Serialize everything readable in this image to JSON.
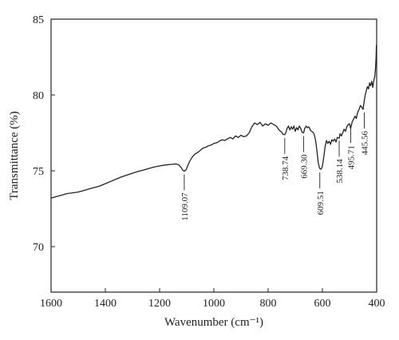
{
  "chart_data": {
    "type": "line",
    "title": "",
    "xlabel": "Wavenumber (cm⁻¹)",
    "ylabel": "Transmittance (%)",
    "xlim": [
      1600,
      400
    ],
    "ylim": [
      67,
      85
    ],
    "x_ticks": [
      "1600",
      "1400",
      "1200",
      "1000",
      "800",
      "600",
      "400"
    ],
    "y_ticks": [
      "85",
      "80",
      "75",
      "70"
    ],
    "grid": false,
    "line_color": "#222222",
    "series": [
      {
        "x": [
          1600,
          1580,
          1560,
          1540,
          1520,
          1500,
          1480,
          1460,
          1440,
          1420,
          1400,
          1380,
          1360,
          1340,
          1320,
          1300,
          1280,
          1260,
          1240,
          1220,
          1200,
          1180,
          1160,
          1140,
          1130,
          1120,
          1115,
          1109,
          1103,
          1097,
          1090,
          1080,
          1070,
          1060,
          1050,
          1040,
          1030,
          1020,
          1010,
          1000,
          990,
          980,
          970,
          960,
          950,
          940,
          930,
          920,
          910,
          900,
          890,
          880,
          870,
          860,
          850,
          840,
          830,
          820,
          810,
          800,
          790,
          780,
          770,
          760,
          750,
          745,
          739,
          735,
          730,
          725,
          720,
          715,
          710,
          705,
          700,
          695,
          690,
          685,
          680,
          675,
          669,
          665,
          660,
          655,
          650,
          645,
          640,
          635,
          630,
          625,
          620,
          615,
          610,
          605,
          600,
          595,
          590,
          585,
          580,
          575,
          570,
          565,
          560,
          555,
          550,
          545,
          538,
          535,
          530,
          525,
          520,
          515,
          510,
          505,
          500,
          496,
          490,
          485,
          480,
          475,
          470,
          465,
          460,
          455,
          450,
          446,
          442,
          438,
          434,
          430,
          426,
          422,
          418,
          414,
          410,
          407,
          404,
          402,
          401
        ],
        "y": [
          73.2,
          73.3,
          73.4,
          73.5,
          73.55,
          73.6,
          73.7,
          73.8,
          73.9,
          74.0,
          74.15,
          74.3,
          74.45,
          74.6,
          74.72,
          74.84,
          74.95,
          75.05,
          75.15,
          75.25,
          75.32,
          75.38,
          75.42,
          75.45,
          75.4,
          75.2,
          75.05,
          74.98,
          75.05,
          75.3,
          75.6,
          75.9,
          76.1,
          76.2,
          76.35,
          76.5,
          76.55,
          76.65,
          76.7,
          76.8,
          76.85,
          76.95,
          77.05,
          77.0,
          77.1,
          77.2,
          77.1,
          77.3,
          77.2,
          77.35,
          77.25,
          77.3,
          77.5,
          77.9,
          78.15,
          78.05,
          78.2,
          77.95,
          78.1,
          78.0,
          78.15,
          78.05,
          77.95,
          77.7,
          77.55,
          77.4,
          77.38,
          77.5,
          77.8,
          77.95,
          77.7,
          77.9,
          77.75,
          77.95,
          77.6,
          77.85,
          77.7,
          77.95,
          77.8,
          77.55,
          77.5,
          77.8,
          77.95,
          77.85,
          77.9,
          77.7,
          77.6,
          77.55,
          77.4,
          77.0,
          76.3,
          75.5,
          75.15,
          75.1,
          75.3,
          75.9,
          76.6,
          77.0,
          76.8,
          76.95,
          76.75,
          77.05,
          76.95,
          77.1,
          76.9,
          77.2,
          77.15,
          77.45,
          77.3,
          77.5,
          77.75,
          77.6,
          77.9,
          78.05,
          78.1,
          77.8,
          78.25,
          78.4,
          78.6,
          78.45,
          78.85,
          79.05,
          79.3,
          79.2,
          79.05,
          79.6,
          80.0,
          80.3,
          80.55,
          80.4,
          80.8,
          80.6,
          80.9,
          80.5,
          81.0,
          81.2,
          81.8,
          82.5,
          83.3
        ]
      }
    ],
    "annotations": [
      {
        "label": "1109.07",
        "x": 1109.07,
        "y": 74.98
      },
      {
        "label": "738.74",
        "x": 738.74,
        "y": 77.38
      },
      {
        "label": "669.30",
        "x": 669.3,
        "y": 77.5
      },
      {
        "label": "609.51",
        "x": 609.51,
        "y": 75.1
      },
      {
        "label": "538.14",
        "x": 538.14,
        "y": 77.2
      },
      {
        "label": "495.71",
        "x": 495.71,
        "y": 78.1
      },
      {
        "label": "445.56",
        "x": 445.56,
        "y": 79.05
      }
    ]
  }
}
